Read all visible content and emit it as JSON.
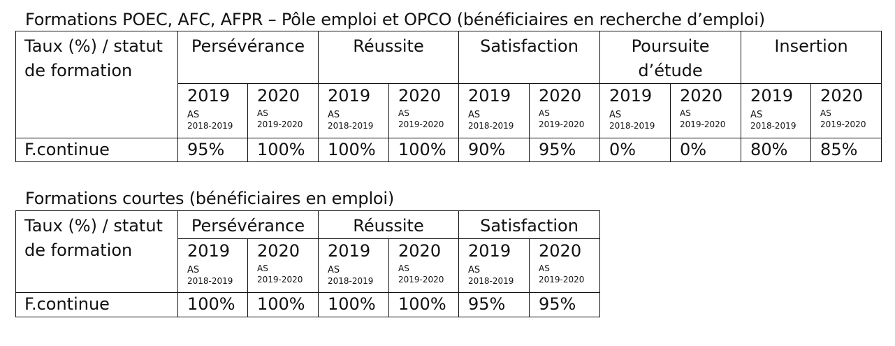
{
  "tables": [
    {
      "caption": "Formations POEC, AFC, AFPR – Pôle emploi et OPCO (bénéficiaires en recherche d’emploi)",
      "status_header": "Taux (%) / statut de formation",
      "metrics": [
        "Persévérance",
        "Réussite",
        "Satisfaction",
        "Poursuite d’étude",
        "Insertion"
      ],
      "year_cols": [
        {
          "year": "2019",
          "as": "AS",
          "period": "2018-2019"
        },
        {
          "year": "2020",
          "as": "AS",
          "period": "2019-2020"
        }
      ],
      "rows": [
        {
          "label": "F.continue",
          "values": [
            "95%",
            "100%",
            "100%",
            "100%",
            "90%",
            "95%",
            "0%",
            "0%",
            "80%",
            "85%"
          ]
        }
      ]
    },
    {
      "caption": "Formations courtes (bénéficiaires en emploi)",
      "status_header": "Taux (%) / statut de formation",
      "metrics": [
        "Persévérance",
        "Réussite",
        "Satisfaction"
      ],
      "year_cols": [
        {
          "year": "2019",
          "as": "AS",
          "period": "2018-2019"
        },
        {
          "year": "2020",
          "as": "AS",
          "period": "2019-2020"
        }
      ],
      "rows": [
        {
          "label": "F.continue",
          "values": [
            "100%",
            "100%",
            "100%",
            "100%",
            "95%",
            "95%"
          ]
        }
      ]
    }
  ]
}
